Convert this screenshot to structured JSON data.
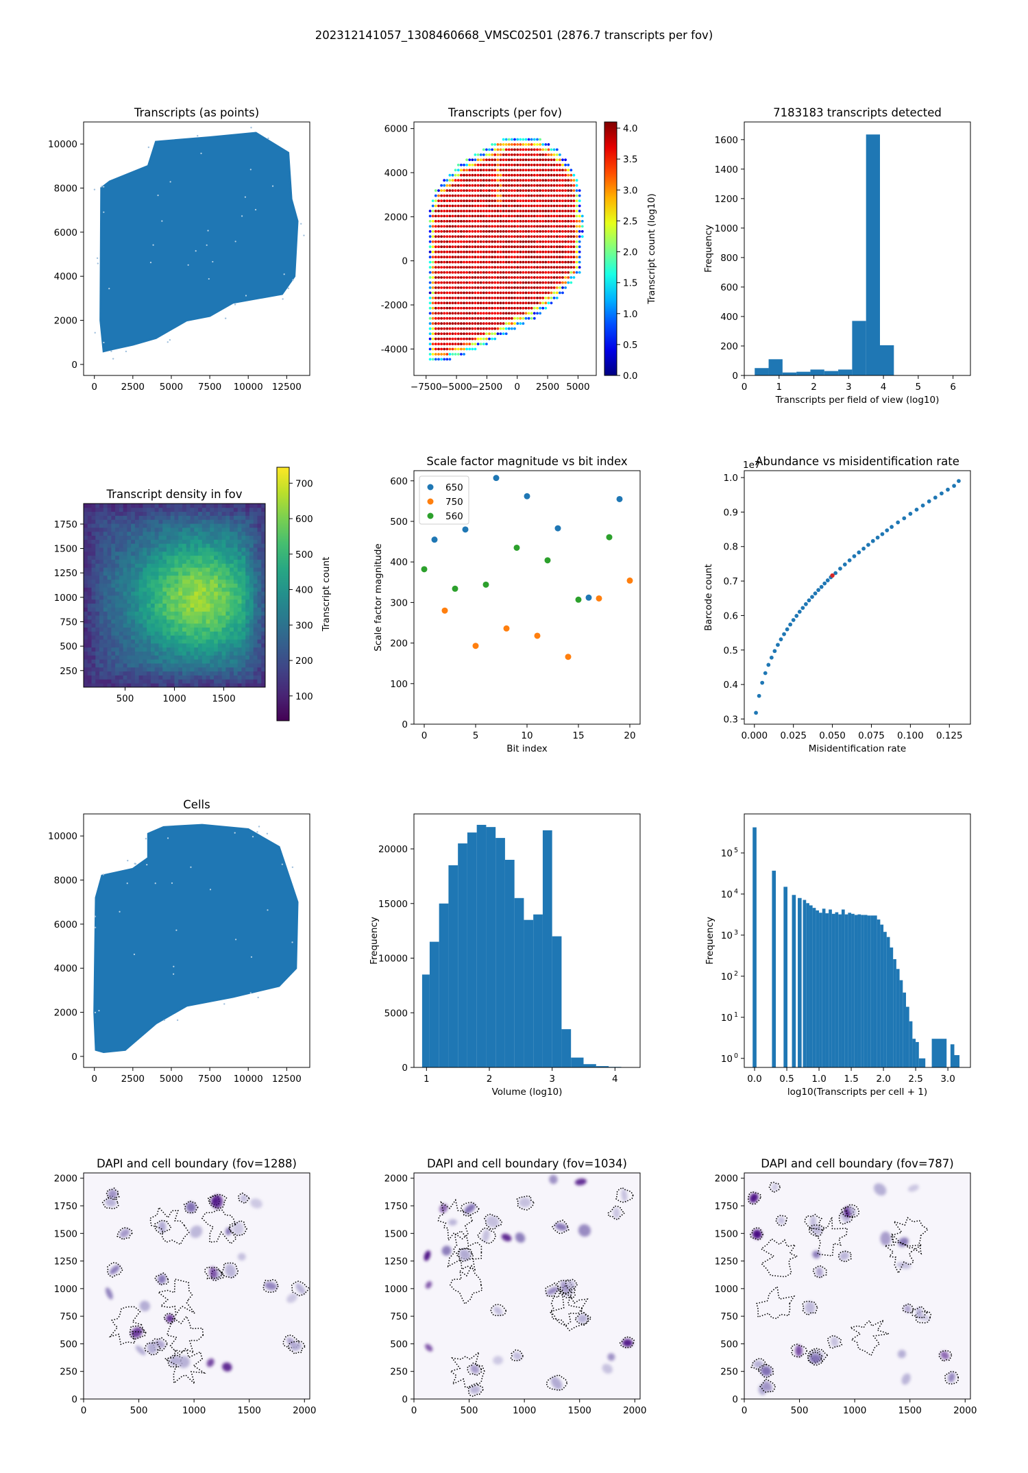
{
  "figure_title": "202312141057_1308460668_VMSC02501 (2876.7 transcripts per fov)",
  "colors": {
    "tab_blue": "#1f77b4",
    "tab_orange": "#ff7f0e",
    "tab_green": "#2ca02c",
    "tab_red": "#d62728",
    "dapi_purple": "#3f007d"
  },
  "chart_data": [
    {
      "id": "p1",
      "type": "scatter",
      "title": "Transcripts (as points)",
      "xlabel": "",
      "ylabel": "",
      "xlim": [
        -700,
        14000
      ],
      "ylim": [
        -500,
        11000
      ],
      "xticks": [
        0,
        2500,
        5000,
        7500,
        10000,
        12500
      ],
      "yticks": [
        0,
        2000,
        4000,
        6000,
        8000,
        10000
      ],
      "series_color": "#1f77b4",
      "outline": [
        [
          600,
          600
        ],
        [
          400,
          2000
        ],
        [
          450,
          8000
        ],
        [
          1000,
          8300
        ],
        [
          3500,
          9000
        ],
        [
          4000,
          10100
        ],
        [
          7500,
          10300
        ],
        [
          10500,
          10500
        ],
        [
          12600,
          9600
        ],
        [
          12800,
          7500
        ],
        [
          13200,
          6500
        ],
        [
          13000,
          4000
        ],
        [
          12200,
          3200
        ],
        [
          9000,
          2800
        ],
        [
          7500,
          2200
        ],
        [
          6000,
          2000
        ],
        [
          4000,
          1200
        ],
        [
          2500,
          900
        ],
        [
          1200,
          700
        ]
      ]
    },
    {
      "id": "p2",
      "type": "scatter",
      "title": "Transcripts (per fov)",
      "xlabel": "",
      "ylabel": "",
      "xlim": [
        -8500,
        6500
      ],
      "ylim": [
        -5200,
        6300
      ],
      "xticks": [
        -7500,
        -5000,
        -2500,
        0,
        2500,
        5000
      ],
      "yticks": [
        -4000,
        -2000,
        0,
        2000,
        4000,
        6000
      ],
      "colorbar": {
        "label": "Transcript count (log10)",
        "range": [
          0,
          4.1
        ],
        "ticks": [
          0.0,
          0.5,
          1.0,
          1.5,
          2.0,
          2.5,
          3.0,
          3.5,
          4.0
        ],
        "cmap": "jet"
      },
      "grid_step": 232
    },
    {
      "id": "p3",
      "type": "bar",
      "title": "7183183 transcripts detected",
      "xlabel": "Transcripts per field of view (log10)",
      "ylabel": "Frequency",
      "xlim": [
        0,
        6.5
      ],
      "ylim": [
        0,
        1720
      ],
      "xticks": [
        0,
        1,
        2,
        3,
        4,
        5,
        6
      ],
      "yticks": [
        0,
        200,
        400,
        600,
        800,
        1000,
        1200,
        1400,
        1600
      ],
      "bin_edges": [
        0.3,
        0.7,
        1.1,
        1.5,
        1.9,
        2.3,
        2.7,
        3.1,
        3.5,
        3.9,
        4.3
      ],
      "values": [
        50,
        110,
        20,
        25,
        40,
        30,
        40,
        370,
        1635,
        205
      ],
      "bar_color": "#1f77b4"
    },
    {
      "id": "p4",
      "type": "heatmap",
      "title": "Transcript density in fov",
      "xlabel": "",
      "ylabel": "",
      "xlim": [
        80,
        1920
      ],
      "ylim": [
        80,
        1960
      ],
      "xticks": [
        500,
        1000,
        1500
      ],
      "yticks": [
        250,
        500,
        750,
        1000,
        1250,
        1500,
        1750
      ],
      "colorbar": {
        "label": "Transcript count",
        "range": [
          30,
          745
        ],
        "ticks": [
          100,
          200,
          300,
          400,
          500,
          600,
          700
        ],
        "cmap": "viridis"
      },
      "peak": [
        1250,
        1000
      ]
    },
    {
      "id": "p5",
      "type": "scatter",
      "title": "Scale factor magnitude vs bit index",
      "xlabel": "Bit index",
      "ylabel": "Scale factor magnitude",
      "xlim": [
        -1,
        21
      ],
      "ylim": [
        0,
        625
      ],
      "xticks": [
        0,
        5,
        10,
        15,
        20
      ],
      "yticks": [
        0,
        100,
        200,
        300,
        400,
        500,
        600
      ],
      "legend": {
        "placement": "upper-left",
        "entries": [
          "650",
          "750",
          "560"
        ]
      },
      "series": [
        {
          "name": "650",
          "color": "#1f77b4",
          "x": [
            1,
            4,
            7,
            10,
            13,
            16,
            19
          ],
          "y": [
            455,
            480,
            607,
            562,
            483,
            312,
            555
          ]
        },
        {
          "name": "750",
          "color": "#ff7f0e",
          "x": [
            2,
            5,
            8,
            11,
            14,
            17,
            20
          ],
          "y": [
            280,
            193,
            236,
            218,
            166,
            310,
            354
          ]
        },
        {
          "name": "560",
          "color": "#2ca02c",
          "x": [
            0,
            3,
            6,
            9,
            12,
            15,
            18
          ],
          "y": [
            382,
            334,
            344,
            435,
            404,
            307,
            461
          ]
        }
      ]
    },
    {
      "id": "p6",
      "type": "scatter",
      "title": "Abundance vs misidentification rate",
      "xlabel": "Misidentification rate",
      "ylabel": "Barcode count",
      "offset_text": "1e7",
      "xlim": [
        -0.0065,
        0.1385
      ],
      "ylim": [
        0.285,
        1.02
      ],
      "xticks": [
        0.0,
        0.025,
        0.05,
        0.075,
        0.1,
        0.125
      ],
      "xticklabels": [
        "0.000",
        "0.025",
        "0.050",
        "0.075",
        "0.100",
        "0.125"
      ],
      "yticks": [
        0.3,
        0.4,
        0.5,
        0.6,
        0.7,
        0.8,
        0.9,
        1.0
      ],
      "yticklabels": [
        "0.3",
        "0.4",
        "0.5",
        "0.6",
        "0.7",
        "0.8",
        "0.9",
        "1.0"
      ],
      "x": [
        0.001,
        0.003,
        0.005,
        0.007,
        0.009,
        0.011,
        0.013,
        0.015,
        0.017,
        0.019,
        0.021,
        0.023,
        0.025,
        0.027,
        0.029,
        0.031,
        0.033,
        0.035,
        0.037,
        0.039,
        0.041,
        0.043,
        0.045,
        0.047,
        0.049,
        0.052,
        0.055,
        0.058,
        0.061,
        0.064,
        0.067,
        0.07,
        0.073,
        0.076,
        0.079,
        0.082,
        0.085,
        0.088,
        0.092,
        0.096,
        0.1,
        0.104,
        0.108,
        0.112,
        0.116,
        0.12,
        0.124,
        0.128,
        0.131
      ],
      "y": [
        0.318,
        0.367,
        0.405,
        0.433,
        0.457,
        0.478,
        0.497,
        0.515,
        0.531,
        0.546,
        0.56,
        0.574,
        0.587,
        0.599,
        0.611,
        0.622,
        0.633,
        0.644,
        0.654,
        0.664,
        0.674,
        0.683,
        0.693,
        0.702,
        0.711,
        0.723,
        0.736,
        0.748,
        0.76,
        0.772,
        0.783,
        0.794,
        0.805,
        0.816,
        0.826,
        0.836,
        0.847,
        0.857,
        0.87,
        0.882,
        0.895,
        0.907,
        0.919,
        0.931,
        0.942,
        0.954,
        0.965,
        0.976,
        0.99
      ],
      "highlight": {
        "x": 0.05,
        "y": 0.716,
        "color": "#d62728"
      },
      "series_color": "#1f77b4"
    },
    {
      "id": "p7",
      "type": "scatter",
      "title": "Cells",
      "xlabel": "",
      "ylabel": "",
      "xlim": [
        -700,
        14000
      ],
      "ylim": [
        -500,
        11000
      ],
      "xticks": [
        0,
        2500,
        5000,
        7500,
        10000,
        12500
      ],
      "yticks": [
        0,
        2000,
        4000,
        6000,
        8000,
        10000
      ],
      "series_color": "#1f77b4",
      "outline": [
        [
          100,
          300
        ],
        [
          0,
          2000
        ],
        [
          100,
          7200
        ],
        [
          500,
          8200
        ],
        [
          2500,
          8500
        ],
        [
          3500,
          9000
        ],
        [
          3500,
          10100
        ],
        [
          4500,
          10400
        ],
        [
          7000,
          10500
        ],
        [
          10000,
          10300
        ],
        [
          12000,
          9500
        ],
        [
          13200,
          7000
        ],
        [
          13100,
          4000
        ],
        [
          12000,
          3200
        ],
        [
          9000,
          2700
        ],
        [
          6000,
          2300
        ],
        [
          4000,
          1500
        ],
        [
          2000,
          300
        ],
        [
          600,
          200
        ]
      ]
    },
    {
      "id": "p8",
      "type": "bar",
      "title": "",
      "xlabel": "Volume (log10)",
      "ylabel": "Frequency",
      "xlim": [
        0.8,
        4.4
      ],
      "ylim": [
        0,
        23200
      ],
      "xticks": [
        1,
        2,
        3,
        4
      ],
      "yticks": [
        0,
        5000,
        10000,
        15000,
        20000
      ],
      "bin_edges": [
        0.93,
        1.05,
        1.2,
        1.35,
        1.5,
        1.65,
        1.8,
        1.95,
        2.1,
        2.25,
        2.4,
        2.55,
        2.7,
        2.85,
        3.0,
        3.15,
        3.3,
        3.5,
        3.7,
        3.9,
        4.1
      ],
      "values": [
        8500,
        11500,
        15000,
        18500,
        20500,
        21500,
        22200,
        22000,
        21000,
        19000,
        15500,
        13500,
        14000,
        21700,
        12000,
        3500,
        900,
        300,
        120,
        50
      ],
      "bar_color": "#1f77b4"
    },
    {
      "id": "p9",
      "type": "bar",
      "scale": "log",
      "title": "",
      "xlabel": "log10(Transcripts per cell + 1)",
      "ylabel": "Frequency",
      "xlim": [
        -0.16,
        3.35
      ],
      "ylim_log10": [
        -0.22,
        5.95
      ],
      "xticks": [
        0.0,
        0.5,
        1.0,
        1.5,
        2.0,
        2.5,
        3.0
      ],
      "xticklabels": [
        "0.0",
        "0.5",
        "1.0",
        "1.5",
        "2.0",
        "2.5",
        "3.0"
      ],
      "yticks_log10": [
        0,
        1,
        2,
        3,
        4,
        5
      ],
      "yticklabels": [
        "10",
        "10",
        "10",
        "10",
        "10",
        "10"
      ],
      "ytick_exponents": [
        "0",
        "1",
        "2",
        "3",
        "4",
        "5"
      ],
      "bars": [
        {
          "x0": -0.03,
          "x1": 0.03,
          "v": 420000
        },
        {
          "x0": 0.27,
          "x1": 0.33,
          "v": 37000
        },
        {
          "x0": 0.45,
          "x1": 0.51,
          "v": 15000
        },
        {
          "x0": 0.58,
          "x1": 0.64,
          "v": 9500
        },
        {
          "x0": 0.67,
          "x1": 0.73,
          "v": 8000
        }
      ],
      "hist_start": 0.75,
      "hist_step": 0.05,
      "hist_values": [
        7200,
        6000,
        5300,
        4600,
        4000,
        3500,
        4400,
        3400,
        4200,
        3300,
        3600,
        3200,
        4200,
        3200,
        3500,
        3300,
        3100,
        3200,
        3100,
        3100,
        3000,
        3000,
        3000,
        2400,
        1800,
        1200,
        900,
        500,
        260,
        150,
        80,
        40,
        18,
        8,
        3,
        2.5,
        1,
        1,
        0
      ],
      "tail": [
        {
          "x0": 2.75,
          "x1": 2.98,
          "v": 3
        },
        {
          "x0": 3.04,
          "x1": 3.1,
          "v": 2.2
        },
        {
          "x0": 3.1,
          "x1": 3.18,
          "v": 1.2
        }
      ],
      "bar_color": "#1f77b4"
    },
    {
      "id": "p10",
      "type": "scatter",
      "title": "DAPI and cell boundary (fov=1288)",
      "xlabel": "",
      "ylabel": "",
      "xlim": [
        0,
        2048
      ],
      "ylim": [
        0,
        2048
      ],
      "xticks": [
        0,
        500,
        1000,
        1500,
        2000
      ],
      "yticks": [
        0,
        250,
        500,
        750,
        1000,
        1250,
        1500,
        1750,
        2000
      ],
      "seed": 1288
    },
    {
      "id": "p11",
      "type": "scatter",
      "title": "DAPI and cell boundary (fov=1034)",
      "xlabel": "",
      "ylabel": "",
      "xlim": [
        0,
        2048
      ],
      "ylim": [
        0,
        2048
      ],
      "xticks": [
        0,
        500,
        1000,
        1500,
        2000
      ],
      "yticks": [
        0,
        250,
        500,
        750,
        1000,
        1250,
        1500,
        1750,
        2000
      ],
      "seed": 1034
    },
    {
      "id": "p12",
      "type": "scatter",
      "title": "DAPI and cell boundary (fov=787)",
      "xlabel": "",
      "ylabel": "",
      "xlim": [
        0,
        2048
      ],
      "ylim": [
        0,
        2048
      ],
      "xticks": [
        0,
        500,
        1000,
        1500,
        2000
      ],
      "yticks": [
        0,
        250,
        500,
        750,
        1000,
        1250,
        1500,
        1750,
        2000
      ],
      "seed": 787
    }
  ]
}
